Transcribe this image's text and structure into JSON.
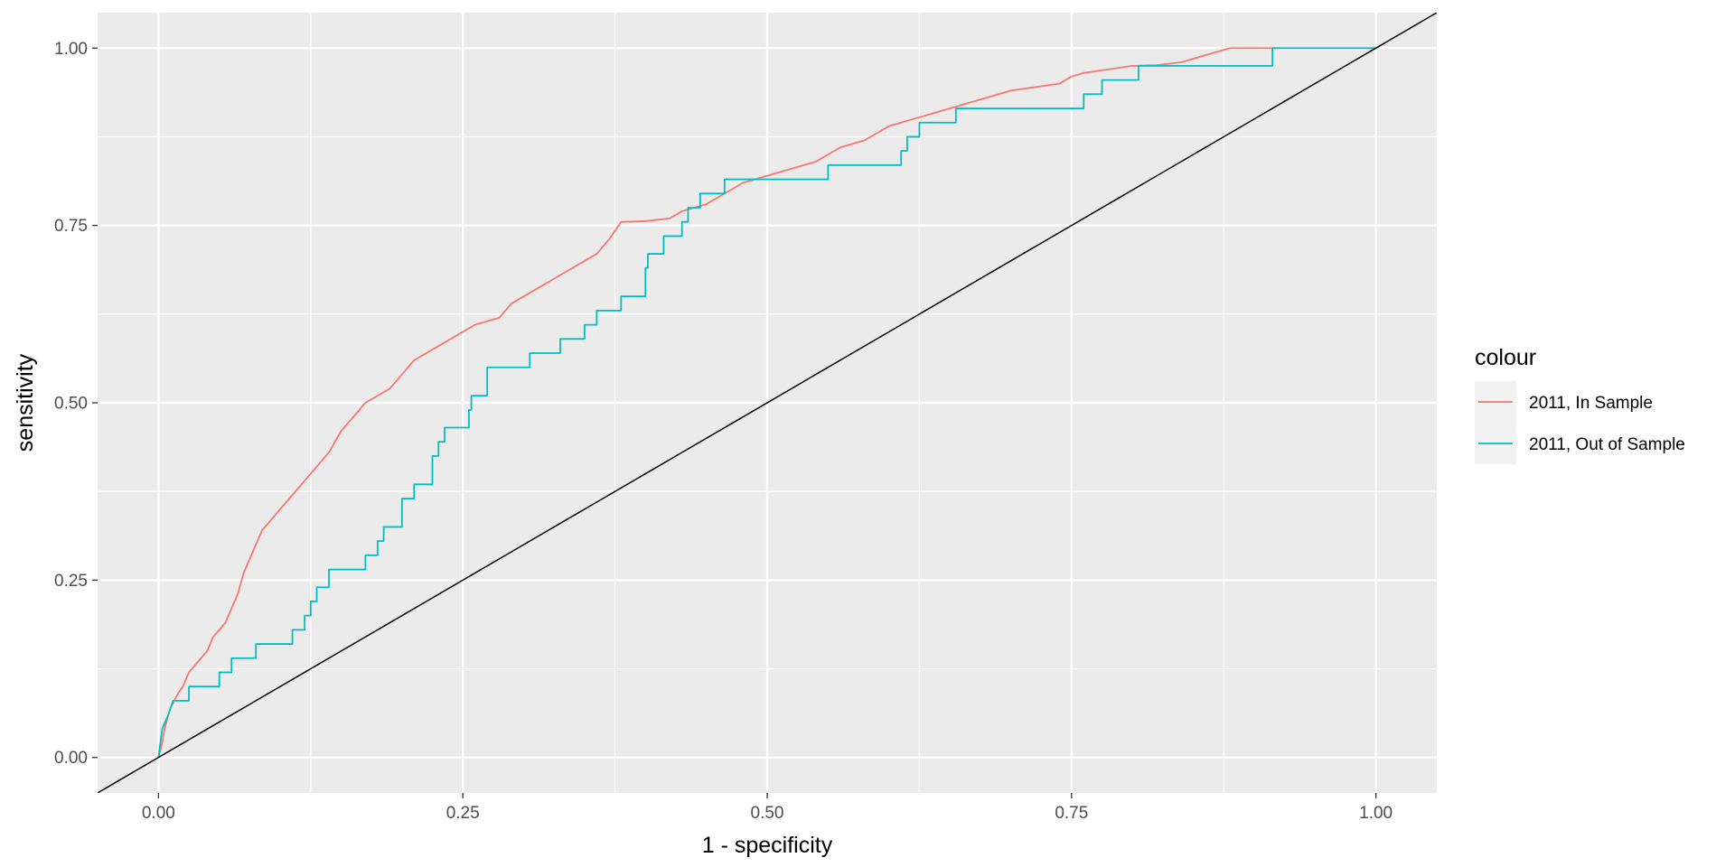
{
  "chart_data": {
    "type": "line",
    "title": "",
    "xlabel": "1 - specificity",
    "ylabel": "sensitivity",
    "xlim": [
      -0.05,
      1.05
    ],
    "ylim": [
      -0.05,
      1.05
    ],
    "x_ticks": [
      "0.00",
      "0.25",
      "0.50",
      "0.75",
      "1.00"
    ],
    "y_ticks": [
      "0.00",
      "0.25",
      "0.50",
      "0.75",
      "1.00"
    ],
    "grid": true,
    "panel_background": "#ebebeb",
    "legend": {
      "title": "colour",
      "position": "right"
    },
    "series": [
      {
        "name": "2011, In Sample",
        "color": "#f8766d",
        "points": [
          [
            0,
            0
          ],
          [
            0.003,
            0.02
          ],
          [
            0.005,
            0.04
          ],
          [
            0.008,
            0.06
          ],
          [
            0.01,
            0.07
          ],
          [
            0.013,
            0.08
          ],
          [
            0.016,
            0.09
          ],
          [
            0.02,
            0.1
          ],
          [
            0.025,
            0.12
          ],
          [
            0.03,
            0.13
          ],
          [
            0.035,
            0.14
          ],
          [
            0.04,
            0.15
          ],
          [
            0.045,
            0.17
          ],
          [
            0.05,
            0.18
          ],
          [
            0.055,
            0.19
          ],
          [
            0.06,
            0.21
          ],
          [
            0.065,
            0.23
          ],
          [
            0.07,
            0.26
          ],
          [
            0.075,
            0.28
          ],
          [
            0.08,
            0.3
          ],
          [
            0.085,
            0.32
          ],
          [
            0.09,
            0.33
          ],
          [
            0.1,
            0.35
          ],
          [
            0.11,
            0.37
          ],
          [
            0.12,
            0.39
          ],
          [
            0.13,
            0.41
          ],
          [
            0.14,
            0.43
          ],
          [
            0.15,
            0.46
          ],
          [
            0.16,
            0.48
          ],
          [
            0.17,
            0.5
          ],
          [
            0.18,
            0.51
          ],
          [
            0.19,
            0.52
          ],
          [
            0.2,
            0.54
          ],
          [
            0.21,
            0.56
          ],
          [
            0.22,
            0.57
          ],
          [
            0.23,
            0.58
          ],
          [
            0.24,
            0.59
          ],
          [
            0.25,
            0.6
          ],
          [
            0.26,
            0.61
          ],
          [
            0.28,
            0.62
          ],
          [
            0.29,
            0.64
          ],
          [
            0.3,
            0.65
          ],
          [
            0.31,
            0.66
          ],
          [
            0.32,
            0.67
          ],
          [
            0.33,
            0.68
          ],
          [
            0.34,
            0.69
          ],
          [
            0.35,
            0.7
          ],
          [
            0.36,
            0.71
          ],
          [
            0.37,
            0.73
          ],
          [
            0.38,
            0.755
          ],
          [
            0.4,
            0.756
          ],
          [
            0.42,
            0.76
          ],
          [
            0.43,
            0.77
          ],
          [
            0.44,
            0.775
          ],
          [
            0.45,
            0.78
          ],
          [
            0.46,
            0.79
          ],
          [
            0.47,
            0.8
          ],
          [
            0.48,
            0.81
          ],
          [
            0.5,
            0.82
          ],
          [
            0.52,
            0.83
          ],
          [
            0.54,
            0.84
          ],
          [
            0.55,
            0.85
          ],
          [
            0.56,
            0.86
          ],
          [
            0.58,
            0.87
          ],
          [
            0.59,
            0.88
          ],
          [
            0.6,
            0.89
          ],
          [
            0.62,
            0.9
          ],
          [
            0.64,
            0.91
          ],
          [
            0.66,
            0.92
          ],
          [
            0.68,
            0.93
          ],
          [
            0.7,
            0.94
          ],
          [
            0.72,
            0.945
          ],
          [
            0.74,
            0.95
          ],
          [
            0.75,
            0.96
          ],
          [
            0.76,
            0.965
          ],
          [
            0.78,
            0.97
          ],
          [
            0.8,
            0.975
          ],
          [
            0.82,
            0.976
          ],
          [
            0.84,
            0.98
          ],
          [
            0.86,
            0.99
          ],
          [
            0.88,
            1.0
          ],
          [
            0.92,
            1.0
          ]
        ]
      },
      {
        "name": "2011, Out of Sample",
        "color": "#00bfc4",
        "points": [
          [
            0,
            0
          ],
          [
            0.003,
            0.04
          ],
          [
            0.008,
            0.06
          ],
          [
            0.012,
            0.08
          ],
          [
            0.025,
            0.08
          ],
          [
            0.025,
            0.1
          ],
          [
            0.05,
            0.1
          ],
          [
            0.05,
            0.12
          ],
          [
            0.06,
            0.12
          ],
          [
            0.06,
            0.14
          ],
          [
            0.08,
            0.14
          ],
          [
            0.08,
            0.16
          ],
          [
            0.11,
            0.16
          ],
          [
            0.11,
            0.18
          ],
          [
            0.12,
            0.18
          ],
          [
            0.12,
            0.2
          ],
          [
            0.125,
            0.2
          ],
          [
            0.125,
            0.22
          ],
          [
            0.13,
            0.22
          ],
          [
            0.13,
            0.24
          ],
          [
            0.14,
            0.24
          ],
          [
            0.14,
            0.265
          ],
          [
            0.17,
            0.265
          ],
          [
            0.17,
            0.285
          ],
          [
            0.18,
            0.285
          ],
          [
            0.18,
            0.305
          ],
          [
            0.185,
            0.305
          ],
          [
            0.185,
            0.325
          ],
          [
            0.2,
            0.325
          ],
          [
            0.2,
            0.365
          ],
          [
            0.21,
            0.365
          ],
          [
            0.21,
            0.385
          ],
          [
            0.225,
            0.385
          ],
          [
            0.225,
            0.425
          ],
          [
            0.23,
            0.425
          ],
          [
            0.23,
            0.445
          ],
          [
            0.235,
            0.445
          ],
          [
            0.235,
            0.465
          ],
          [
            0.255,
            0.465
          ],
          [
            0.255,
            0.49
          ],
          [
            0.257,
            0.49
          ],
          [
            0.257,
            0.51
          ],
          [
            0.27,
            0.51
          ],
          [
            0.27,
            0.55
          ],
          [
            0.305,
            0.55
          ],
          [
            0.305,
            0.57
          ],
          [
            0.33,
            0.57
          ],
          [
            0.33,
            0.59
          ],
          [
            0.35,
            0.59
          ],
          [
            0.35,
            0.61
          ],
          [
            0.36,
            0.61
          ],
          [
            0.36,
            0.63
          ],
          [
            0.38,
            0.63
          ],
          [
            0.38,
            0.65
          ],
          [
            0.4,
            0.65
          ],
          [
            0.4,
            0.69
          ],
          [
            0.402,
            0.69
          ],
          [
            0.402,
            0.71
          ],
          [
            0.415,
            0.71
          ],
          [
            0.415,
            0.735
          ],
          [
            0.43,
            0.735
          ],
          [
            0.43,
            0.755
          ],
          [
            0.435,
            0.755
          ],
          [
            0.435,
            0.775
          ],
          [
            0.445,
            0.775
          ],
          [
            0.445,
            0.795
          ],
          [
            0.465,
            0.795
          ],
          [
            0.465,
            0.815
          ],
          [
            0.55,
            0.815
          ],
          [
            0.55,
            0.835
          ],
          [
            0.61,
            0.835
          ],
          [
            0.61,
            0.855
          ],
          [
            0.615,
            0.855
          ],
          [
            0.615,
            0.875
          ],
          [
            0.625,
            0.875
          ],
          [
            0.625,
            0.895
          ],
          [
            0.655,
            0.895
          ],
          [
            0.655,
            0.915
          ],
          [
            0.76,
            0.915
          ],
          [
            0.76,
            0.935
          ],
          [
            0.775,
            0.935
          ],
          [
            0.775,
            0.955
          ],
          [
            0.805,
            0.955
          ],
          [
            0.805,
            0.975
          ],
          [
            0.915,
            0.975
          ],
          [
            0.915,
            1.0
          ],
          [
            1.0,
            1.0
          ]
        ]
      },
      {
        "name": "",
        "color": "#000000",
        "points": [
          [
            -0.05,
            -0.05
          ],
          [
            1.05,
            1.05
          ]
        ]
      }
    ]
  }
}
